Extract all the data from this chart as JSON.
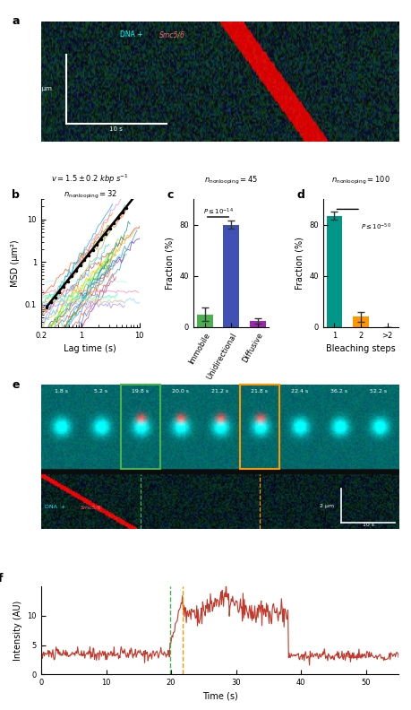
{
  "panel_b": {
    "title_v": "v = 1.5 ± 0.2 kbp s⁻¹",
    "title_n": "n_nonlooping = 32",
    "xlabel": "Lag time (s)",
    "ylabel": "MSD (μm²)",
    "xlim": [
      0.2,
      10
    ],
    "ylim": [
      0.03,
      30
    ],
    "line_colors": [
      "#e74c3c",
      "#e67e22",
      "#f1c40f",
      "#2ecc71",
      "#1abc9c",
      "#3498db",
      "#9b59b6",
      "#e91e63",
      "#ff5722",
      "#cddc39",
      "#00bcd4",
      "#2196f3",
      "#673ab7",
      "#ff9800",
      "#4caf50",
      "#009688",
      "#03a9f4",
      "#8bc34a",
      "#ffc107",
      "#ff5252",
      "#69f0ae",
      "#40c4ff",
      "#ea80fc",
      "#ff6d00",
      "#76ff03",
      "#18ffff",
      "#b388ff",
      "#ff80ab",
      "#ccff90",
      "#80d8ff",
      "#a7ffeb",
      "#ffd180"
    ],
    "fit_color": "#000000"
  },
  "panel_c": {
    "title": "n_nonlooping = 45",
    "ylabel": "Fraction (%)",
    "categories": [
      "Immobile",
      "Unidirectional",
      "Diffusive"
    ],
    "values": [
      10,
      80,
      5
    ],
    "errors": [
      5,
      3,
      2
    ],
    "colors": [
      "#4caf50",
      "#3f51b5",
      "#9c27b0"
    ],
    "ylim": [
      0,
      100
    ]
  },
  "panel_d": {
    "title": "n_nonlooping = 100",
    "ylabel": "Fraction (%)",
    "categories": [
      "1",
      "2",
      ">2"
    ],
    "values": [
      87,
      8,
      0
    ],
    "errors": [
      3,
      4,
      0
    ],
    "xlabel": "Bleaching steps",
    "ylim": [
      0,
      100
    ]
  },
  "panel_f": {
    "xlabel": "Time (s)",
    "ylabel": "Intensity (AU)",
    "xlim": [
      0,
      55
    ],
    "ylim": [
      0,
      15
    ],
    "line_color": "#c0392b",
    "vline1_x": 19.8,
    "vline1_color": "#4caf50",
    "vline2_x": 21.8,
    "vline2_color": "#ff9800"
  }
}
